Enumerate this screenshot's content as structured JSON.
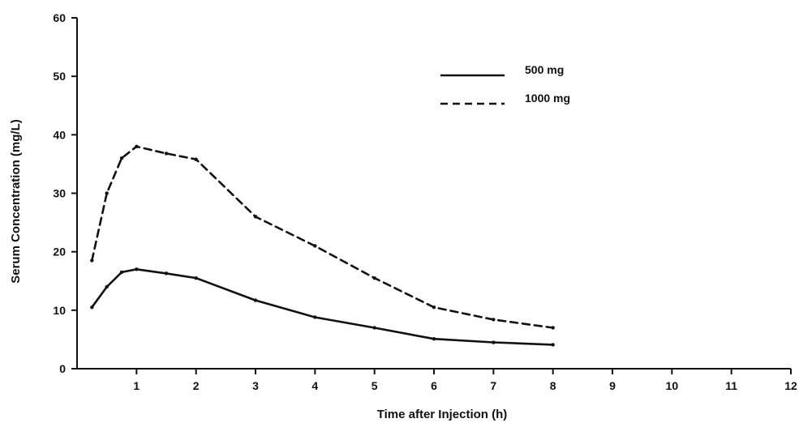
{
  "chart_data": {
    "type": "line",
    "title": "",
    "xlabel": "Time after Injection (h)",
    "ylabel": "Serum Concentration (mg/L)",
    "xlim": [
      0,
      12
    ],
    "ylim": [
      0,
      60
    ],
    "x_ticks": [
      1,
      2,
      3,
      4,
      5,
      6,
      7,
      8,
      9,
      10,
      11,
      12
    ],
    "y_ticks": [
      0,
      10,
      20,
      30,
      40,
      50,
      60
    ],
    "grid": false,
    "legend_position": "top-right",
    "series": [
      {
        "name": "500 mg",
        "line_style": "solid",
        "color": "#111111",
        "x": [
          0.25,
          0.5,
          0.75,
          1,
          1.5,
          2,
          3,
          4,
          5,
          6,
          7,
          8
        ],
        "y": [
          10.5,
          14,
          16.5,
          17,
          16.3,
          15.5,
          11.7,
          8.8,
          7,
          5.1,
          4.5,
          4.1
        ]
      },
      {
        "name": "1000 mg",
        "line_style": "dashed",
        "color": "#111111",
        "x": [
          0.25,
          0.5,
          0.75,
          1,
          1.5,
          2,
          3,
          4,
          5,
          6,
          7,
          8
        ],
        "y": [
          18.5,
          30,
          36,
          38,
          36.8,
          35.8,
          26,
          21,
          15.5,
          10.5,
          8.4,
          7
        ]
      }
    ]
  }
}
